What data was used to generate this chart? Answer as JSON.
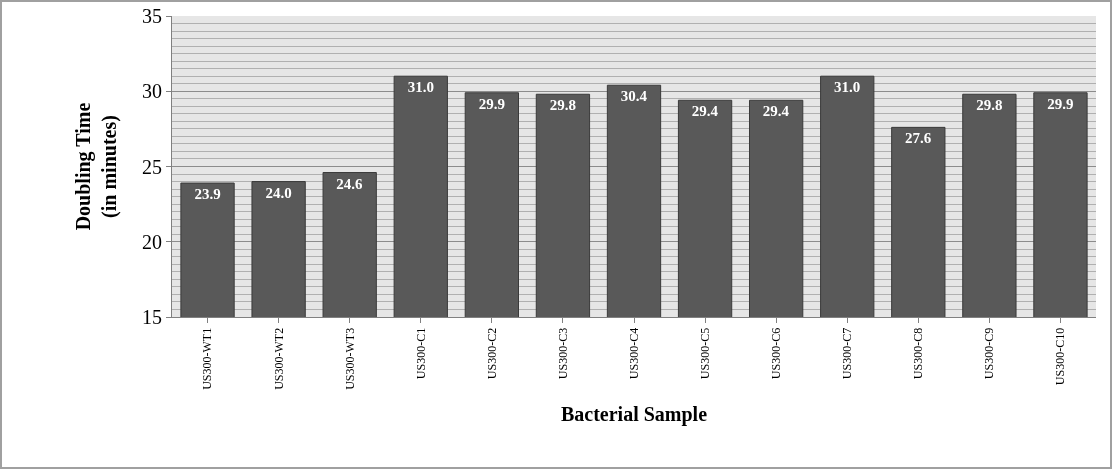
{
  "chart_data": {
    "type": "bar",
    "xlabel": "Bacterial Sample",
    "ylabel": "Doubling Time\n(in minutes)",
    "categories": [
      "US300-WT1",
      "US300-WT2",
      "US300-WT3",
      "US300-C1",
      "US300-C2",
      "US300-C3",
      "US300-C4",
      "US300-C5",
      "US300-C6",
      "US300-C7",
      "US300-C8",
      "US300-C9",
      "US300-C10"
    ],
    "values": [
      23.9,
      24.0,
      24.6,
      31.0,
      29.9,
      29.8,
      30.4,
      29.4,
      29.4,
      31.0,
      27.6,
      29.8,
      29.9
    ],
    "value_labels": [
      "23.9",
      "24.0",
      "24.6",
      "31.0",
      "29.9",
      "29.8",
      "30.4",
      "29.4",
      "29.4",
      "31.0",
      "27.6",
      "29.8",
      "29.9"
    ],
    "color": "#595959",
    "ylim": [
      15,
      35
    ],
    "yticks": [
      15,
      20,
      25,
      30,
      35
    ],
    "grid": "y",
    "legend": false
  }
}
